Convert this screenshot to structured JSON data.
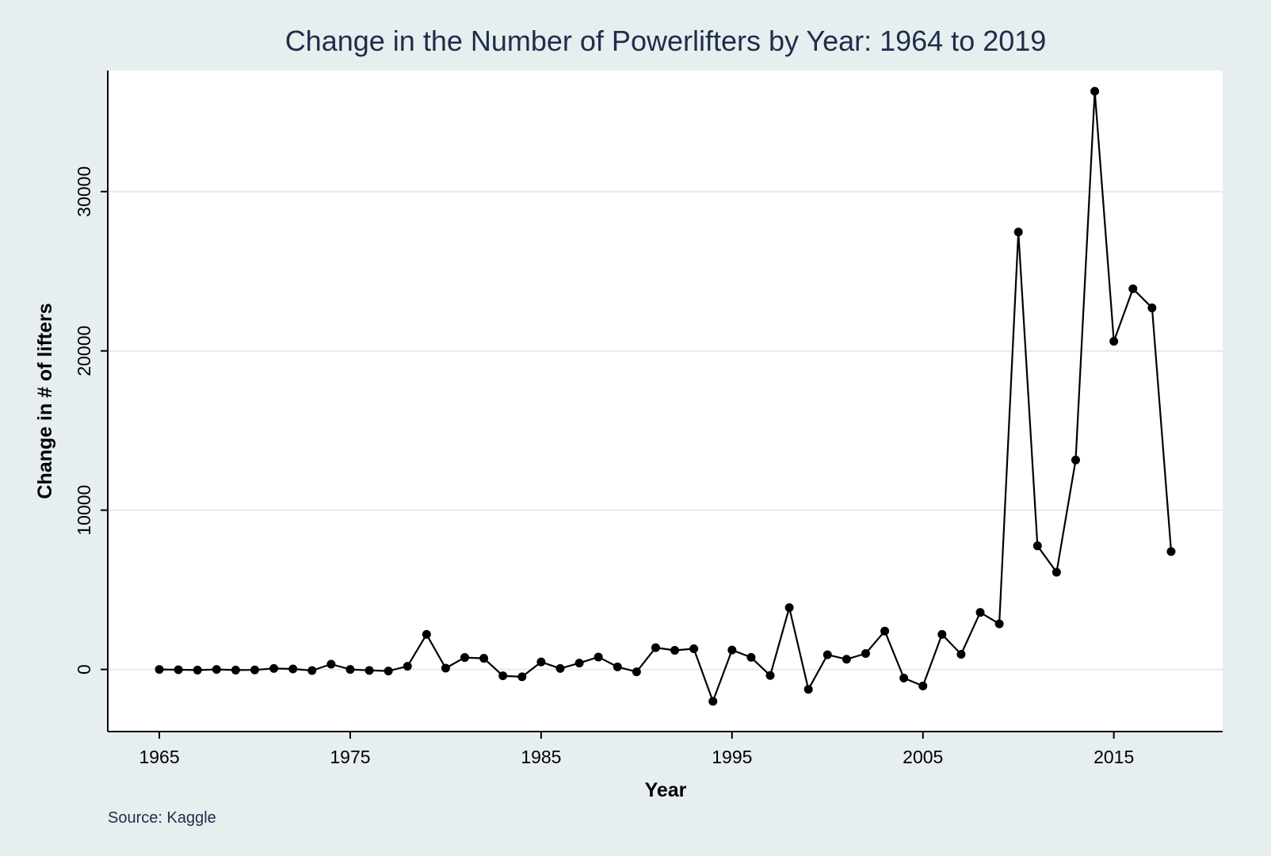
{
  "chart_data": {
    "type": "line",
    "title": "Change in the Number of Powerlifters by Year: 1964 to 2019",
    "xlabel": "Year",
    "ylabel": "Change in # of lifters",
    "source": "Source: Kaggle",
    "xlim": [
      1962.3,
      2020.7
    ],
    "ylim": [
      -3900,
      37600
    ],
    "xticks": [
      1965,
      1975,
      1985,
      1995,
      2005,
      2015
    ],
    "yticks": [
      0,
      10000,
      20000,
      30000
    ],
    "grid": true,
    "legend": "none",
    "series": [
      {
        "x": [
          1965,
          1966,
          1967,
          1968,
          1969,
          1970,
          1971,
          1972,
          1973,
          1974,
          1975,
          1976,
          1977,
          1978,
          1979,
          1980,
          1981,
          1982,
          1983,
          1984,
          1985,
          1986,
          1987,
          1988,
          1989,
          1990,
          1991,
          1992,
          1993,
          1994,
          1995,
          1996,
          1997,
          1998,
          1999,
          2000,
          2001,
          2002,
          2003,
          2004,
          2005,
          2006,
          2007,
          2008,
          2009,
          2010,
          2011,
          2012,
          2013,
          2014,
          2015,
          2016,
          2017,
          2018
        ],
        "values": [
          0,
          -20,
          -40,
          0,
          -40,
          -30,
          60,
          30,
          -70,
          330,
          0,
          -60,
          -100,
          200,
          2200,
          80,
          750,
          700,
          -400,
          -460,
          470,
          60,
          400,
          780,
          160,
          -150,
          1370,
          1200,
          1300,
          -2000,
          1220,
          760,
          -380,
          3880,
          -1250,
          920,
          640,
          1000,
          2410,
          -540,
          -1040,
          2200,
          950,
          3580,
          2860,
          27460,
          7760,
          6100,
          13150,
          36300,
          20600,
          23900,
          22700,
          7400
        ]
      }
    ],
    "colors": {
      "outer_background": "#e6eef0",
      "plot_background": "#ffffff",
      "grid": "#e2ecee",
      "line": "#000000",
      "title": "#1f2d4a"
    }
  }
}
